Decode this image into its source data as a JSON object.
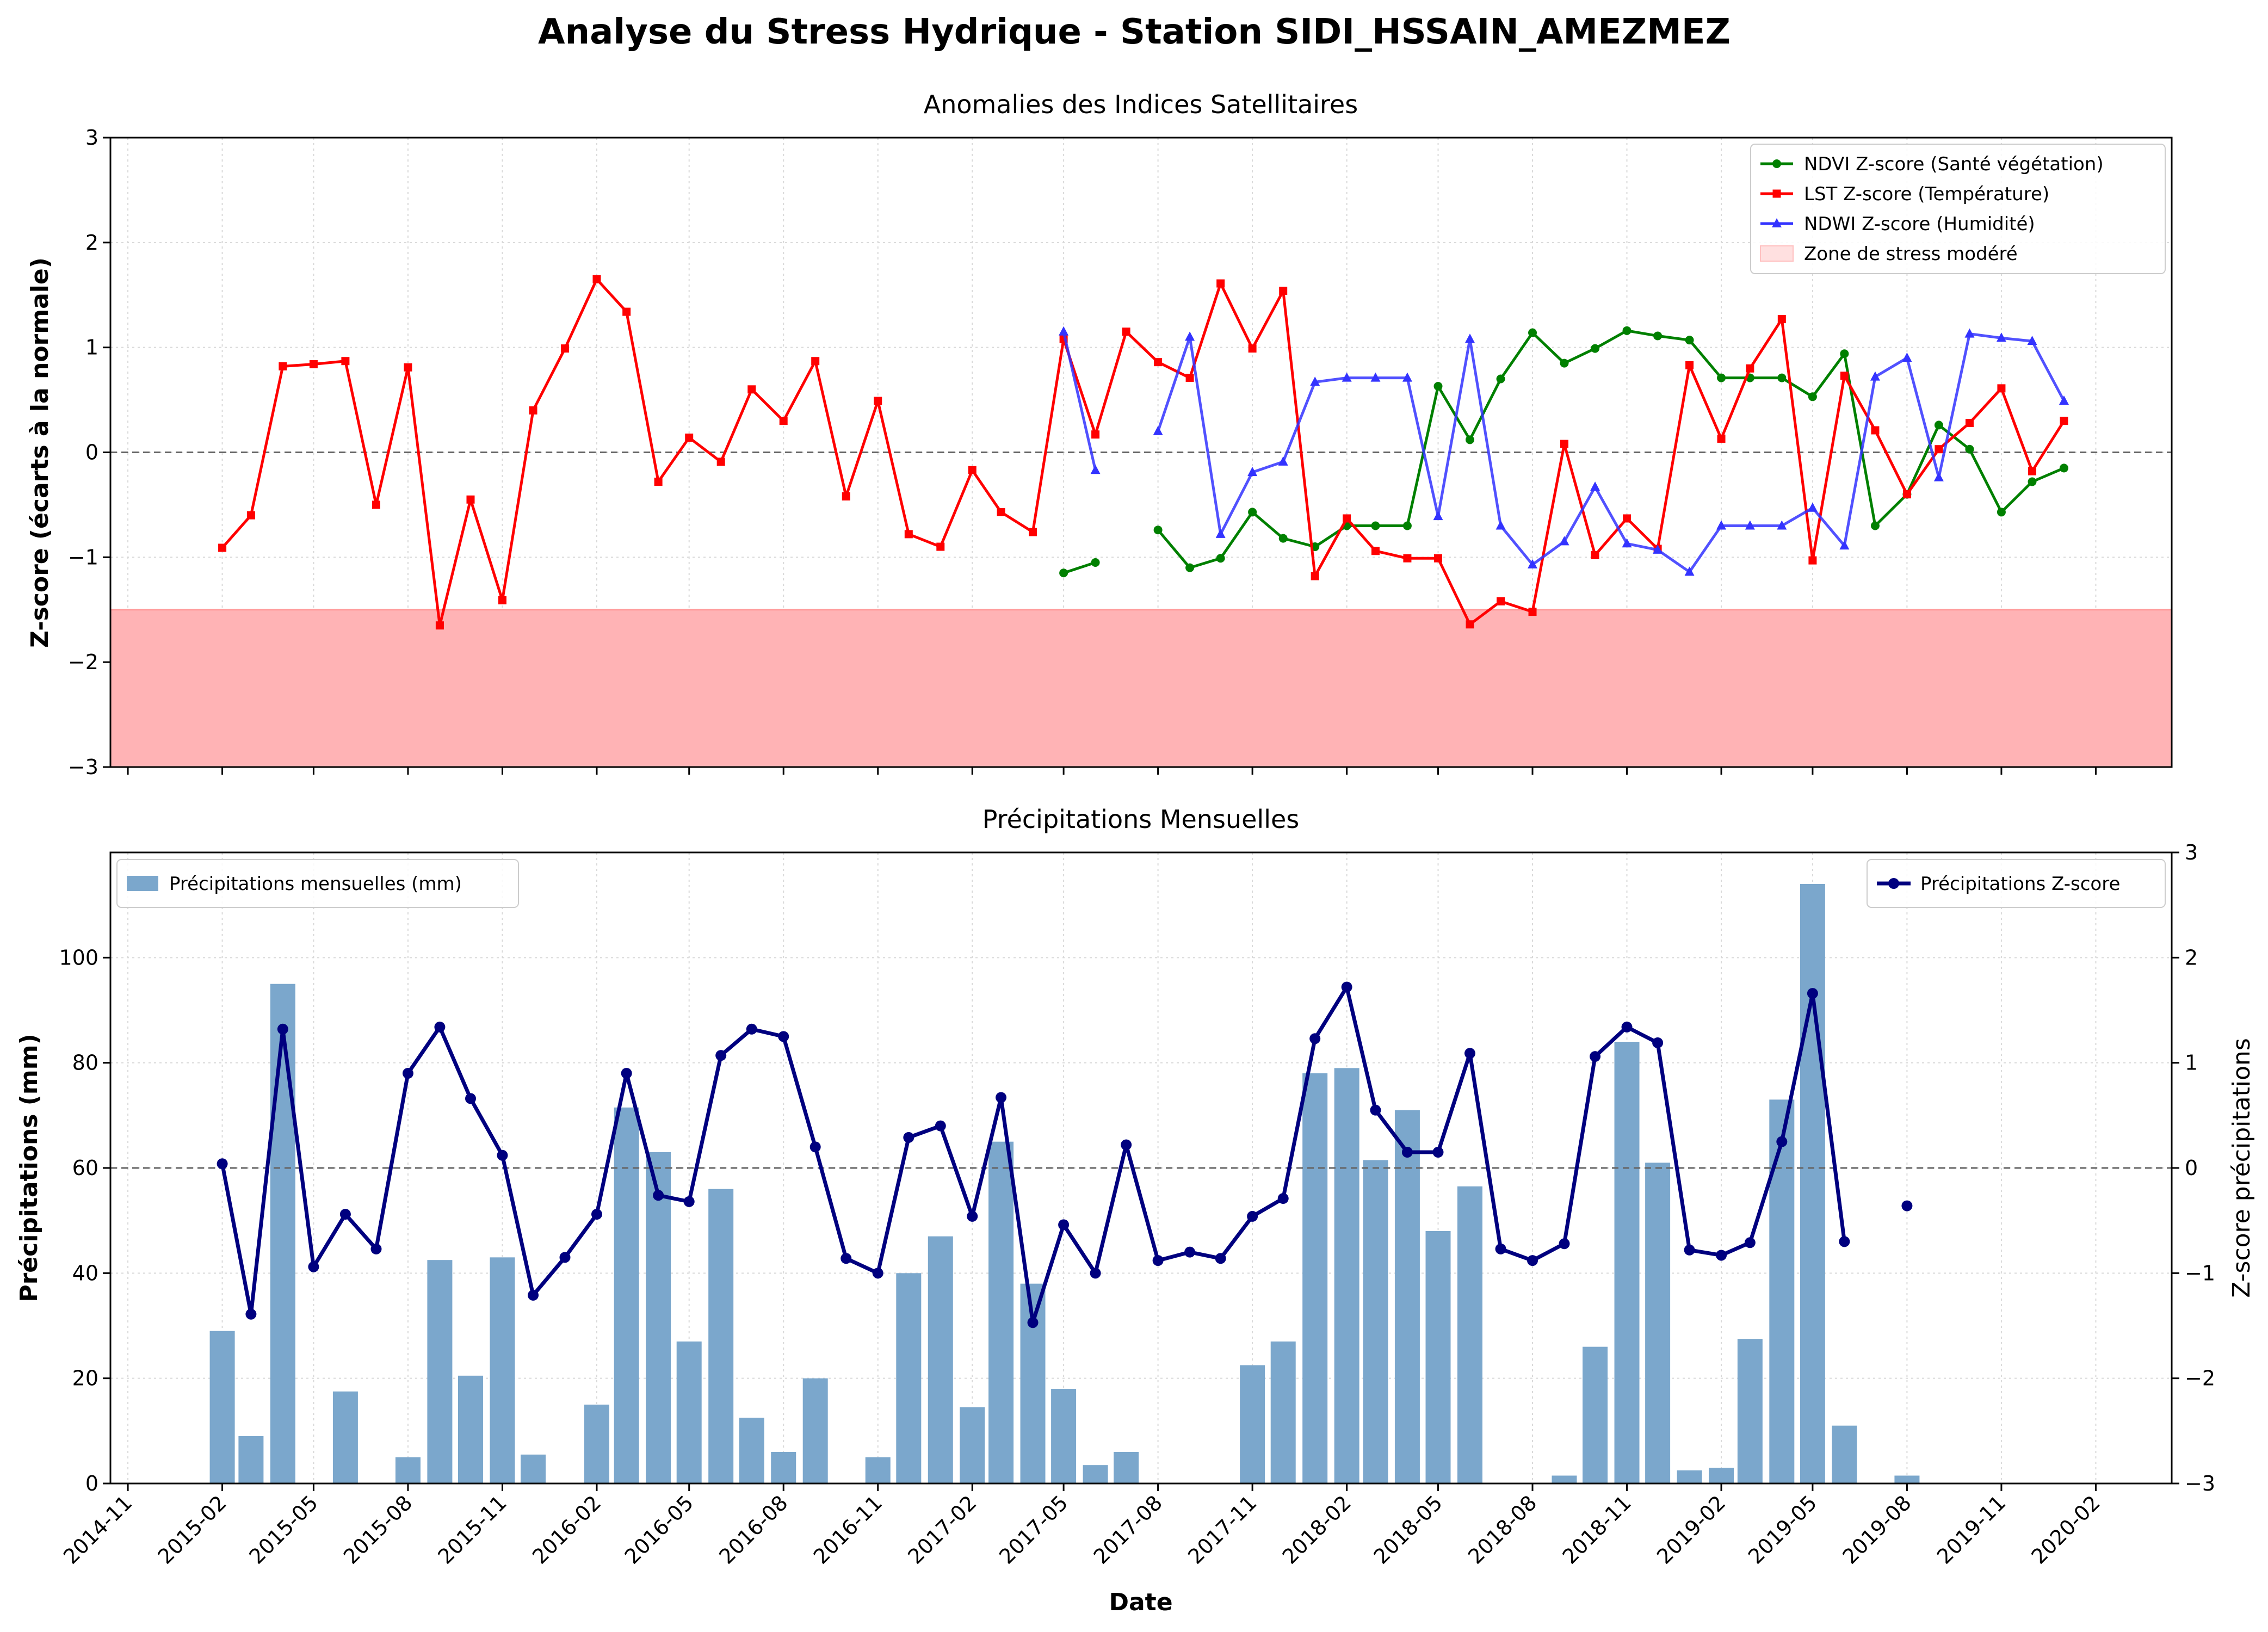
{
  "figure": {
    "title": "Analyse du Stress Hydrique - Station SIDI_HSSAIN_AMEZMEZ",
    "xlabel": "Date",
    "xticks": [
      "2014-11",
      "2015-02",
      "2015-05",
      "2015-08",
      "2015-11",
      "2016-02",
      "2016-05",
      "2016-08",
      "2016-11",
      "2017-02",
      "2017-05",
      "2017-08",
      "2017-11",
      "2018-02",
      "2018-05",
      "2018-08",
      "2018-11",
      "2019-02",
      "2019-05",
      "2019-08",
      "2019-11",
      "2020-02"
    ],
    "colors": {
      "ndvi": "#008000",
      "lst": "#ff0000",
      "ndwi": "#3333ff",
      "stress": "#ffb3b5",
      "bars": "#7ba7cc",
      "precip_z": "#00007f"
    }
  },
  "chart_data": [
    {
      "type": "line",
      "title": "Anomalies des Indices Satellitaires",
      "ylabel": "Z-score (écarts à la normale)",
      "ylim": [
        -3,
        3
      ],
      "yticks": [
        "3",
        "2",
        "1",
        "0",
        "−1",
        "−2",
        "−3"
      ],
      "xlim": [
        "2014-10-15",
        "2020-04-15"
      ],
      "grid": true,
      "legend": "top-right",
      "zones": [
        {
          "name": "Zone de stress modéré",
          "from": -3,
          "to": -1.5
        }
      ],
      "reference_line": 0,
      "series": [
        {
          "name": "NDVI Z-score (Santé végétation)",
          "marker": "circle",
          "points": [
            [
              "2017-05",
              -1.15
            ],
            [
              "2017-06",
              -1.05
            ],
            null,
            [
              "2017-08",
              -0.74
            ],
            [
              "2017-09",
              -1.1
            ],
            [
              "2017-10",
              -1.01
            ],
            [
              "2017-11",
              -0.57
            ],
            [
              "2017-12",
              -0.82
            ],
            [
              "2018-01",
              -0.9
            ],
            [
              "2018-02",
              -0.7
            ],
            [
              "2018-03",
              -0.7
            ],
            [
              "2018-04",
              -0.7
            ],
            [
              "2018-05",
              0.63
            ],
            [
              "2018-06",
              0.12
            ],
            [
              "2018-07",
              0.7
            ],
            [
              "2018-08",
              1.14
            ],
            [
              "2018-09",
              0.85
            ],
            [
              "2018-10",
              0.99
            ],
            [
              "2018-11",
              1.16
            ],
            [
              "2018-12",
              1.11
            ],
            [
              "2019-01",
              1.07
            ],
            [
              "2019-02",
              0.71
            ],
            [
              "2019-03",
              0.71
            ],
            [
              "2019-04",
              0.71
            ],
            [
              "2019-05",
              0.53
            ],
            [
              "2019-06",
              0.94
            ],
            [
              "2019-07",
              -0.7
            ],
            [
              "2019-08",
              -0.4
            ],
            [
              "2019-09",
              0.26
            ],
            [
              "2019-10",
              0.03
            ],
            [
              "2019-11",
              -0.57
            ],
            [
              "2019-12",
              -0.28
            ],
            [
              "2020-01",
              -0.15
            ]
          ]
        },
        {
          "name": "LST Z-score (Température)",
          "marker": "square",
          "points": [
            [
              "2015-02",
              -0.91
            ],
            [
              "2015-03",
              -0.6
            ],
            [
              "2015-04",
              0.82
            ],
            [
              "2015-05",
              0.84
            ],
            [
              "2015-06",
              0.87
            ],
            [
              "2015-07",
              -0.5
            ],
            [
              "2015-08",
              0.81
            ],
            [
              "2015-09",
              -1.65
            ],
            [
              "2015-10",
              -0.45
            ],
            [
              "2015-11",
              -1.41
            ],
            [
              "2015-12",
              0.4
            ],
            [
              "2016-01",
              0.99
            ],
            [
              "2016-02",
              1.65
            ],
            [
              "2016-03",
              1.34
            ],
            [
              "2016-04",
              -0.28
            ],
            [
              "2016-05",
              0.14
            ],
            [
              "2016-06",
              -0.09
            ],
            [
              "2016-07",
              0.6
            ],
            [
              "2016-08",
              0.3
            ],
            [
              "2016-09",
              0.87
            ],
            [
              "2016-10",
              -0.42
            ],
            [
              "2016-11",
              0.49
            ],
            [
              "2016-12",
              -0.78
            ],
            [
              "2017-01",
              -0.9
            ],
            [
              "2017-02",
              -0.17
            ],
            [
              "2017-03",
              -0.57
            ],
            [
              "2017-04",
              -0.76
            ],
            [
              "2017-05",
              1.08
            ],
            [
              "2017-06",
              0.17
            ],
            [
              "2017-07",
              1.15
            ],
            [
              "2017-08",
              0.86
            ],
            [
              "2017-09",
              0.71
            ],
            [
              "2017-10",
              1.61
            ],
            [
              "2017-11",
              0.99
            ],
            [
              "2017-12",
              1.54
            ],
            [
              "2018-01",
              -1.18
            ],
            [
              "2018-02",
              -0.63
            ],
            [
              "2018-03",
              -0.94
            ],
            [
              "2018-04",
              -1.01
            ],
            [
              "2018-05",
              -1.01
            ],
            [
              "2018-06",
              -1.64
            ],
            [
              "2018-07",
              -1.42
            ],
            [
              "2018-08",
              -1.52
            ],
            [
              "2018-09",
              0.08
            ],
            [
              "2018-10",
              -0.98
            ],
            [
              "2018-11",
              -0.63
            ],
            [
              "2018-12",
              -0.92
            ],
            [
              "2019-01",
              0.83
            ],
            [
              "2019-02",
              0.13
            ],
            [
              "2019-03",
              0.8
            ],
            [
              "2019-04",
              1.27
            ],
            [
              "2019-05",
              -1.03
            ],
            [
              "2019-06",
              0.73
            ],
            [
              "2019-07",
              0.21
            ],
            [
              "2019-08",
              -0.4
            ],
            [
              "2019-09",
              0.03
            ],
            [
              "2019-10",
              0.28
            ],
            [
              "2019-11",
              0.61
            ],
            [
              "2019-12",
              -0.18
            ],
            [
              "2020-01",
              0.3
            ]
          ]
        },
        {
          "name": "NDWI Z-score (Humidité)",
          "marker": "triangle",
          "points": [
            [
              "2017-05",
              1.15
            ],
            [
              "2017-06",
              -0.17
            ],
            null,
            [
              "2017-08",
              0.2
            ],
            [
              "2017-09",
              1.1
            ],
            [
              "2017-10",
              -0.78
            ],
            [
              "2017-11",
              -0.19
            ],
            [
              "2017-12",
              -0.09
            ],
            [
              "2018-01",
              0.67
            ],
            [
              "2018-02",
              0.71
            ],
            [
              "2018-03",
              0.71
            ],
            [
              "2018-04",
              0.71
            ],
            [
              "2018-05",
              -0.61
            ],
            [
              "2018-06",
              1.08
            ],
            [
              "2018-07",
              -0.7
            ],
            [
              "2018-08",
              -1.07
            ],
            [
              "2018-09",
              -0.85
            ],
            [
              "2018-10",
              -0.33
            ],
            [
              "2018-11",
              -0.87
            ],
            [
              "2018-12",
              -0.93
            ],
            [
              "2019-01",
              -1.14
            ],
            [
              "2019-02",
              -0.7
            ],
            [
              "2019-03",
              -0.7
            ],
            [
              "2019-04",
              -0.7
            ],
            [
              "2019-05",
              -0.53
            ],
            [
              "2019-06",
              -0.89
            ],
            [
              "2019-07",
              0.72
            ],
            [
              "2019-08",
              0.9
            ],
            [
              "2019-09",
              -0.24
            ],
            [
              "2019-10",
              1.13
            ],
            [
              "2019-11",
              1.09
            ],
            [
              "2019-12",
              1.06
            ],
            [
              "2020-01",
              0.49
            ]
          ]
        }
      ]
    },
    {
      "type": "bar",
      "title": "Précipitations Mensuelles",
      "ylabel": "Précipitations (mm)",
      "ylim": [
        0,
        120
      ],
      "yticks": [
        "0",
        "20",
        "40",
        "60",
        "80",
        "100"
      ],
      "y2label": "Z-score précipitations",
      "y2lim": [
        -3,
        3
      ],
      "y2ticks": [
        "3",
        "2",
        "1",
        "0",
        "−1",
        "−2",
        "−3"
      ],
      "xlim": [
        "2014-10-15",
        "2020-04-15"
      ],
      "grid": true,
      "reference_line_y2": 0,
      "bar_series": {
        "name": "Précipitations mensuelles (mm)",
        "legend": "top-left",
        "points": [
          [
            "2015-02",
            29
          ],
          [
            "2015-03",
            9
          ],
          [
            "2015-04",
            95
          ],
          [
            "2015-05",
            0
          ],
          [
            "2015-06",
            17.5
          ],
          [
            "2015-07",
            0
          ],
          [
            "2015-08",
            5
          ],
          [
            "2015-09",
            42.5
          ],
          [
            "2015-10",
            20.5
          ],
          [
            "2015-11",
            43
          ],
          [
            "2015-12",
            5.5
          ],
          [
            "2016-01",
            0
          ],
          [
            "2016-02",
            15
          ],
          [
            "2016-03",
            71.5
          ],
          [
            "2016-04",
            63
          ],
          [
            "2016-05",
            27
          ],
          [
            "2016-06",
            56
          ],
          [
            "2016-07",
            12.5
          ],
          [
            "2016-08",
            6
          ],
          [
            "2016-09",
            20
          ],
          [
            "2016-10",
            0
          ],
          [
            "2016-11",
            5
          ],
          [
            "2016-12",
            40
          ],
          [
            "2017-01",
            47
          ],
          [
            "2017-02",
            14.5
          ],
          [
            "2017-03",
            65
          ],
          [
            "2017-04",
            38
          ],
          [
            "2017-05",
            18
          ],
          [
            "2017-06",
            3.5
          ],
          [
            "2017-07",
            6
          ],
          [
            "2017-08",
            0
          ],
          [
            "2017-09",
            0
          ],
          [
            "2017-10",
            0
          ],
          [
            "2017-11",
            22.5
          ],
          [
            "2017-12",
            27
          ],
          [
            "2018-01",
            78
          ],
          [
            "2018-02",
            79
          ],
          [
            "2018-03",
            61.5
          ],
          [
            "2018-04",
            71
          ],
          [
            "2018-05",
            48
          ],
          [
            "2018-06",
            56.5
          ],
          [
            "2018-07",
            0
          ],
          [
            "2018-08",
            0
          ],
          [
            "2018-09",
            1.5
          ],
          [
            "2018-10",
            26
          ],
          [
            "2018-11",
            84
          ],
          [
            "2018-12",
            61
          ],
          [
            "2019-01",
            2.5
          ],
          [
            "2019-02",
            3
          ],
          [
            "2019-03",
            27.5
          ],
          [
            "2019-04",
            73
          ],
          [
            "2019-05",
            114
          ],
          [
            "2019-06",
            11
          ],
          [
            "2019-07",
            0
          ],
          [
            "2019-08",
            1.5
          ]
        ]
      },
      "line_series": {
        "name": "Précipitations Z-score",
        "legend": "top-right",
        "points": [
          [
            "2015-02",
            0.04
          ],
          [
            "2015-03",
            -1.39
          ],
          [
            "2015-04",
            1.32
          ],
          [
            "2015-05",
            -0.94
          ],
          [
            "2015-06",
            -0.44
          ],
          [
            "2015-07",
            -0.77
          ],
          [
            "2015-08",
            0.9
          ],
          [
            "2015-09",
            1.34
          ],
          [
            "2015-10",
            0.66
          ],
          [
            "2015-11",
            0.12
          ],
          [
            "2015-12",
            -1.21
          ],
          [
            "2016-01",
            -0.85
          ],
          [
            "2016-02",
            -0.44
          ],
          [
            "2016-03",
            0.9
          ],
          [
            "2016-04",
            -0.26
          ],
          [
            "2016-05",
            -0.32
          ],
          [
            "2016-06",
            1.07
          ],
          [
            "2016-07",
            1.32
          ],
          [
            "2016-08",
            1.25
          ],
          [
            "2016-09",
            0.2
          ],
          [
            "2016-10",
            -0.86
          ],
          [
            "2016-11",
            -1.0
          ],
          [
            "2016-12",
            0.29
          ],
          [
            "2017-01",
            0.4
          ],
          [
            "2017-02",
            -0.46
          ],
          [
            "2017-03",
            0.67
          ],
          [
            "2017-04",
            -1.47
          ],
          [
            "2017-05",
            -0.54
          ],
          [
            "2017-06",
            -1.0
          ],
          [
            "2017-07",
            0.22
          ],
          [
            "2017-08",
            -0.88
          ],
          [
            "2017-09",
            -0.8
          ],
          [
            "2017-10",
            -0.86
          ],
          [
            "2017-11",
            -0.46
          ],
          [
            "2017-12",
            -0.29
          ],
          [
            "2018-01",
            1.23
          ],
          [
            "2018-02",
            1.72
          ],
          [
            "2018-03",
            0.55
          ],
          [
            "2018-04",
            0.15
          ],
          [
            "2018-05",
            0.15
          ],
          [
            "2018-06",
            1.09
          ],
          [
            "2018-07",
            -0.77
          ],
          [
            "2018-08",
            -0.88
          ],
          [
            "2018-09",
            -0.72
          ],
          [
            "2018-10",
            1.06
          ],
          [
            "2018-11",
            1.34
          ],
          [
            "2018-12",
            1.19
          ],
          [
            "2019-01",
            -0.78
          ],
          [
            "2019-02",
            -0.83
          ],
          [
            "2019-03",
            -0.71
          ],
          [
            "2019-04",
            0.25
          ],
          [
            "2019-05",
            1.66
          ],
          [
            "2019-06",
            -0.7
          ],
          null,
          [
            "2019-08",
            -0.36
          ]
        ]
      }
    }
  ]
}
